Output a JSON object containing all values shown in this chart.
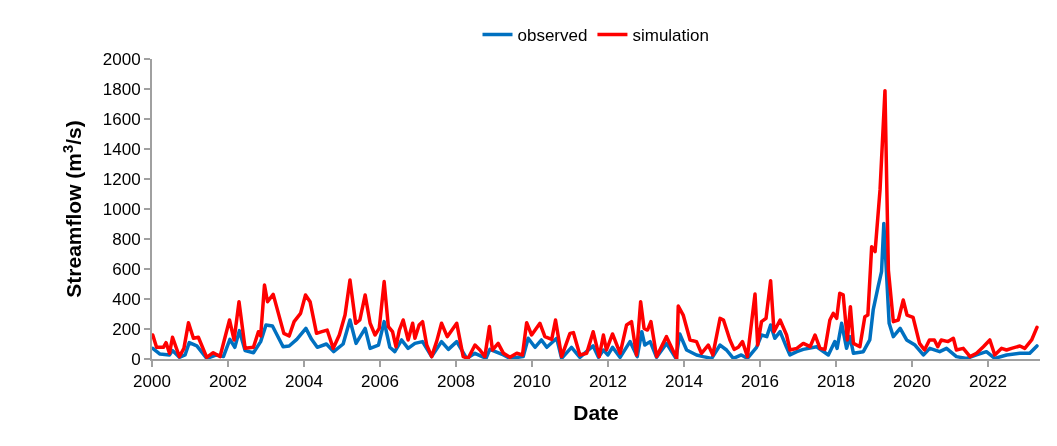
{
  "chart_data": {
    "type": "line",
    "xlabel": "Date",
    "ylabel": "Streamflow (m$^{3}$/s)",
    "xlim": [
      2000,
      2023.37
    ],
    "xticks": [
      2000,
      2002,
      2004,
      2006,
      2008,
      2010,
      2012,
      2014,
      2016,
      2018,
      2020,
      2022
    ],
    "ylim": [
      0,
      2000
    ],
    "yticks": [
      0,
      200,
      400,
      600,
      800,
      1000,
      1200,
      1400,
      1600,
      1800,
      2000
    ],
    "grid": false,
    "legend": "top",
    "marker": "none",
    "line_style": "solid",
    "series": [
      {
        "name": "observed",
        "color": "#0070c0",
        "x": [
          2000.02,
          2000.21,
          2000.46,
          2000.54,
          2000.72,
          2000.87,
          2000.98,
          2001.18,
          2001.44,
          2001.7,
          2001.88,
          2002.05,
          2002.18,
          2002.3,
          2002.45,
          2002.67,
          2002.86,
          2003.0,
          2003.17,
          2003.45,
          2003.61,
          2003.81,
          2004.05,
          2004.2,
          2004.35,
          2004.59,
          2004.78,
          2005.03,
          2005.21,
          2005.37,
          2005.61,
          2005.74,
          2005.96,
          2006.11,
          2006.26,
          2006.39,
          2006.57,
          2006.74,
          2006.92,
          2007.12,
          2007.36,
          2007.62,
          2007.8,
          2008.02,
          2008.28,
          2008.5,
          2008.79,
          2008.89,
          2009.25,
          2009.42,
          2009.77,
          2009.9,
          2010.08,
          2010.25,
          2010.39,
          2010.65,
          2010.78,
          2011.04,
          2011.26,
          2011.61,
          2011.75,
          2011.88,
          2012.0,
          2012.12,
          2012.32,
          2012.58,
          2012.77,
          2012.89,
          2012.97,
          2013.11,
          2013.28,
          2013.54,
          2013.79,
          2013.89,
          2014.07,
          2014.33,
          2014.51,
          2014.73,
          2014.95,
          2015.12,
          2015.3,
          2015.51,
          2015.67,
          2015.91,
          2016.04,
          2016.18,
          2016.28,
          2016.39,
          2016.53,
          2016.7,
          2016.79,
          2016.97,
          2017.14,
          2017.49,
          2017.8,
          2017.97,
          2018.03,
          2018.15,
          2018.28,
          2018.37,
          2018.46,
          2018.72,
          2018.89,
          2018.98,
          2019.11,
          2019.2,
          2019.26,
          2019.4,
          2019.51,
          2019.69,
          2019.86,
          2020.08,
          2020.3,
          2020.47,
          2020.73,
          2020.91,
          2021.17,
          2021.44,
          2021.7,
          2021.96,
          2022.18,
          2022.49,
          2022.84,
          2023.1,
          2023.29
        ],
        "values": [
          71,
          33,
          27,
          56,
          11,
          27,
          109,
          87,
          4,
          27,
          16,
          131,
          78,
          189,
          56,
          42,
          116,
          227,
          220,
          82,
          87,
          131,
          204,
          131,
          78,
          100,
          49,
          100,
          260,
          104,
          204,
          71,
          93,
          249,
          78,
          49,
          127,
          71,
          104,
          116,
          16,
          116,
          64,
          116,
          4,
          38,
          4,
          64,
          27,
          4,
          16,
          138,
          78,
          127,
          78,
          138,
          4,
          78,
          11,
          87,
          11,
          60,
          27,
          78,
          11,
          116,
          16,
          182,
          93,
          116,
          11,
          104,
          4,
          167,
          60,
          27,
          16,
          4,
          93,
          60,
          4,
          27,
          4,
          78,
          160,
          149,
          227,
          138,
          182,
          78,
          27,
          49,
          64,
          82,
          27,
          116,
          71,
          238,
          71,
          149,
          38,
          49,
          127,
          327,
          482,
          582,
          904,
          238,
          149,
          204,
          127,
          93,
          27,
          71,
          49,
          71,
          16,
          4,
          27,
          49,
          4,
          27,
          38,
          38,
          87
        ]
      },
      {
        "name": "simulation",
        "color": "#ff0000",
        "x": [
          2000.02,
          2000.12,
          2000.3,
          2000.37,
          2000.46,
          2000.54,
          2000.72,
          2000.84,
          2000.96,
          2001.09,
          2001.22,
          2001.44,
          2001.61,
          2001.79,
          2002.04,
          2002.16,
          2002.29,
          2002.45,
          2002.67,
          2002.8,
          2002.86,
          2002.96,
          2003.04,
          2003.19,
          2003.47,
          2003.61,
          2003.74,
          2003.91,
          2004.04,
          2004.16,
          2004.33,
          2004.47,
          2004.61,
          2004.77,
          2004.93,
          2005.08,
          2005.21,
          2005.36,
          2005.47,
          2005.61,
          2005.74,
          2005.87,
          2005.98,
          2006.11,
          2006.22,
          2006.33,
          2006.42,
          2006.51,
          2006.61,
          2006.74,
          2006.86,
          2006.92,
          2007.03,
          2007.12,
          2007.23,
          2007.36,
          2007.49,
          2007.62,
          2007.77,
          2008.02,
          2008.19,
          2008.32,
          2008.5,
          2008.63,
          2008.76,
          2008.88,
          2008.96,
          2009.11,
          2009.25,
          2009.42,
          2009.6,
          2009.75,
          2009.86,
          2009.99,
          2010.21,
          2010.34,
          2010.52,
          2010.62,
          2010.78,
          2011.0,
          2011.09,
          2011.26,
          2011.44,
          2011.61,
          2011.77,
          2011.88,
          2011.96,
          2012.12,
          2012.32,
          2012.49,
          2012.62,
          2012.75,
          2012.86,
          2012.95,
          2013.04,
          2013.13,
          2013.28,
          2013.54,
          2013.81,
          2013.85,
          2013.98,
          2014.16,
          2014.33,
          2014.46,
          2014.64,
          2014.76,
          2014.95,
          2015.04,
          2015.21,
          2015.32,
          2015.43,
          2015.54,
          2015.67,
          2015.87,
          2015.94,
          2016.04,
          2016.16,
          2016.28,
          2016.37,
          2016.53,
          2016.7,
          2016.79,
          2016.97,
          2017.14,
          2017.32,
          2017.45,
          2017.58,
          2017.71,
          2017.84,
          2017.93,
          2018.02,
          2018.1,
          2018.19,
          2018.3,
          2018.38,
          2018.46,
          2018.63,
          2018.76,
          2018.84,
          2018.94,
          2019.03,
          2019.16,
          2019.29,
          2019.38,
          2019.51,
          2019.64,
          2019.77,
          2019.87,
          2020.03,
          2020.2,
          2020.33,
          2020.46,
          2020.59,
          2020.68,
          2020.77,
          2020.95,
          2021.09,
          2021.17,
          2021.35,
          2021.53,
          2021.7,
          2021.88,
          2022.05,
          2022.18,
          2022.36,
          2022.49,
          2022.62,
          2022.84,
          2022.97,
          2023.15,
          2023.29
        ],
        "values": [
          160,
          78,
          78,
          109,
          38,
          145,
          16,
          71,
          242,
          138,
          145,
          11,
          42,
          16,
          260,
          127,
          382,
          71,
          78,
          182,
          153,
          493,
          382,
          431,
          171,
          153,
          249,
          304,
          427,
          382,
          171,
          182,
          193,
          71,
          160,
          293,
          527,
          238,
          260,
          427,
          238,
          160,
          204,
          516,
          216,
          182,
          82,
          193,
          260,
          127,
          238,
          138,
          227,
          249,
          93,
          16,
          116,
          238,
          149,
          238,
          16,
          4,
          93,
          60,
          16,
          216,
          60,
          104,
          38,
          11,
          38,
          27,
          242,
          160,
          238,
          149,
          131,
          260,
          16,
          171,
          176,
          27,
          38,
          182,
          16,
          160,
          60,
          167,
          38,
          227,
          249,
          27,
          382,
          204,
          193,
          249,
          16,
          149,
          4,
          353,
          293,
          127,
          116,
          38,
          93,
          27,
          271,
          260,
          127,
          64,
          78,
          116,
          16,
          433,
          93,
          249,
          271,
          522,
          182,
          260,
          160,
          60,
          71,
          104,
          82,
          160,
          71,
          64,
          260,
          304,
          271,
          438,
          427,
          127,
          349,
          104,
          82,
          282,
          293,
          749,
          716,
          1127,
          1789,
          593,
          249,
          260,
          393,
          293,
          278,
          104,
          60,
          127,
          127,
          82,
          127,
          116,
          138,
          60,
          71,
          16,
          38,
          82,
          127,
          27,
          71,
          60,
          71,
          87,
          71,
          127,
          211
        ]
      }
    ]
  }
}
